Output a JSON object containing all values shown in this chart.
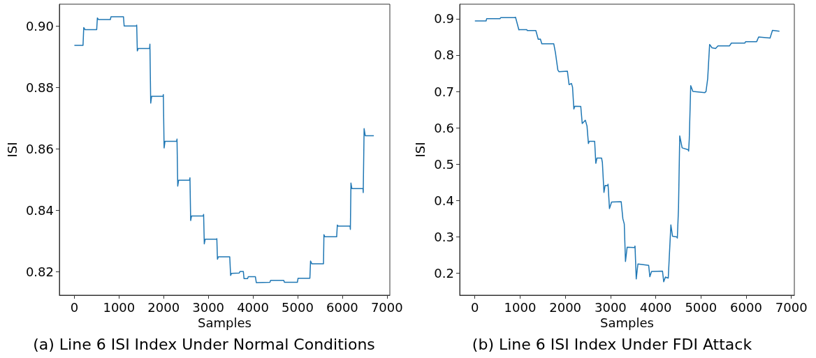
{
  "chart_data": [
    {
      "type": "line",
      "title": "(a) Line 6 ISI Index Under Normal Conditions",
      "xlabel": "Samples",
      "ylabel": "ISI",
      "grid": false,
      "marker": "none",
      "line_style": "solid",
      "xlim": [
        -336,
        7066
      ],
      "ylim": [
        0.8124,
        0.9071
      ],
      "xticks": [
        0,
        1000,
        2000,
        3000,
        4000,
        5000,
        6000,
        7000
      ],
      "yticks": [
        0.82,
        0.84,
        0.86,
        0.88,
        {
          "value": 0.9,
          "label": "0.90"
        }
      ],
      "series": [
        {
          "color": "#1f77b4",
          "x": [
            0,
            194,
            210,
            240,
            500,
            515,
            540,
            806,
            820,
            1100,
            1115,
            1390,
            1396,
            1410,
            1430,
            1685,
            1692,
            1710,
            1730,
            1985,
            1993,
            2010,
            2030,
            2290,
            2299,
            2315,
            2335,
            2580,
            2589,
            2605,
            2625,
            2885,
            2895,
            2910,
            2930,
            3185,
            3191,
            3205,
            3225,
            3480,
            3486,
            3500,
            3520,
            3690,
            3710,
            3785,
            3800,
            3880,
            3895,
            4055,
            4075,
            4380,
            4395,
            4690,
            4705,
            4995,
            5010,
            5275,
            5290,
            5320,
            5580,
            5590,
            5610,
            5875,
            5890,
            5910,
            6175,
            6182,
            6195,
            6215,
            6465,
            6470,
            6490,
            6515,
            6708
          ],
          "values": [
            0.8937,
            0.8937,
            0.8995,
            0.8988,
            0.8988,
            0.9026,
            0.9021,
            0.9021,
            0.903,
            0.903,
            0.9,
            0.9,
            0.9003,
            0.8919,
            0.8927,
            0.8927,
            0.8941,
            0.8749,
            0.8771,
            0.8771,
            0.8777,
            0.8603,
            0.8625,
            0.8625,
            0.8632,
            0.8479,
            0.8498,
            0.8498,
            0.8506,
            0.8367,
            0.8382,
            0.8382,
            0.8387,
            0.8291,
            0.8306,
            0.8306,
            0.8308,
            0.8241,
            0.8249,
            0.8249,
            0.825,
            0.8188,
            0.8195,
            0.8196,
            0.8201,
            0.8201,
            0.8178,
            0.8178,
            0.8184,
            0.8184,
            0.8165,
            0.8166,
            0.8172,
            0.8172,
            0.8166,
            0.8166,
            0.8179,
            0.8179,
            0.8235,
            0.8226,
            0.8226,
            0.8321,
            0.8314,
            0.8314,
            0.8352,
            0.8349,
            0.8349,
            0.8338,
            0.8489,
            0.8471,
            0.8471,
            0.8458,
            0.8666,
            0.8643,
            0.8643
          ]
        }
      ]
    },
    {
      "type": "line",
      "title": "(b) Line 6 ISI Index Under FDI Attack",
      "xlabel": "Samples",
      "ylabel": "ISI",
      "grid": false,
      "marker": "none",
      "line_style": "solid",
      "xlim": [
        -336,
        7066
      ],
      "ylim": [
        0.14,
        0.94
      ],
      "xticks": [
        0,
        1000,
        2000,
        3000,
        4000,
        5000,
        6000,
        7000
      ],
      "yticks": [
        0.2,
        0.3,
        0.4,
        0.5,
        0.6,
        0.7,
        0.8,
        0.9
      ],
      "series": [
        {
          "color": "#1f77b4",
          "x": [
            0,
            248,
            260,
            555,
            570,
            880,
            899,
            973,
            990,
            1147,
            1160,
            1348,
            1401,
            1449,
            1480,
            1745,
            1782,
            1835,
            1861,
            2046,
            2083,
            2136,
            2160,
            2189,
            2210,
            2342,
            2374,
            2443,
            2480,
            2511,
            2530,
            2649,
            2675,
            2700,
            2802,
            2820,
            2855,
            2881,
            2935,
            2945,
            2977,
            3024,
            3236,
            3273,
            3304,
            3331,
            3368,
            3530,
            3542,
            3569,
            3606,
            3844,
            3870,
            3907,
            4150,
            4177,
            4214,
            4277,
            4298,
            4335,
            4372,
            4467,
            4478,
            4504,
            4531,
            4584,
            4716,
            4728,
            4742,
            4774,
            4822,
            5086,
            5112,
            5149,
            5192,
            5245,
            5324,
            5377,
            5631,
            5673,
            5969,
            5990,
            6233,
            6276,
            6529,
            6582,
            6736
          ],
          "values": [
            0.894,
            0.894,
            0.9,
            0.9,
            0.903,
            0.903,
            0.904,
            0.8695,
            0.87,
            0.87,
            0.8675,
            0.8675,
            0.8437,
            0.844,
            0.8311,
            0.8311,
            0.8066,
            0.759,
            0.7543,
            0.756,
            0.719,
            0.722,
            0.712,
            0.6517,
            0.6596,
            0.659,
            0.612,
            0.6212,
            0.605,
            0.557,
            0.563,
            0.563,
            0.5026,
            0.5172,
            0.517,
            0.505,
            0.4225,
            0.4417,
            0.441,
            0.445,
            0.3781,
            0.396,
            0.397,
            0.3503,
            0.336,
            0.2325,
            0.272,
            0.271,
            0.275,
            0.1848,
            0.2258,
            0.222,
            0.1907,
            0.205,
            0.206,
            0.1768,
            0.19,
            0.187,
            0.24,
            0.3331,
            0.302,
            0.3,
            0.297,
            0.38,
            0.5781,
            0.545,
            0.54,
            0.536,
            0.57,
            0.716,
            0.7,
            0.697,
            0.7,
            0.735,
            0.8291,
            0.82,
            0.818,
            0.8252,
            0.8252,
            0.8331,
            0.8331,
            0.8371,
            0.8371,
            0.8497,
            0.847,
            0.8682,
            0.8656
          ]
        }
      ]
    }
  ]
}
